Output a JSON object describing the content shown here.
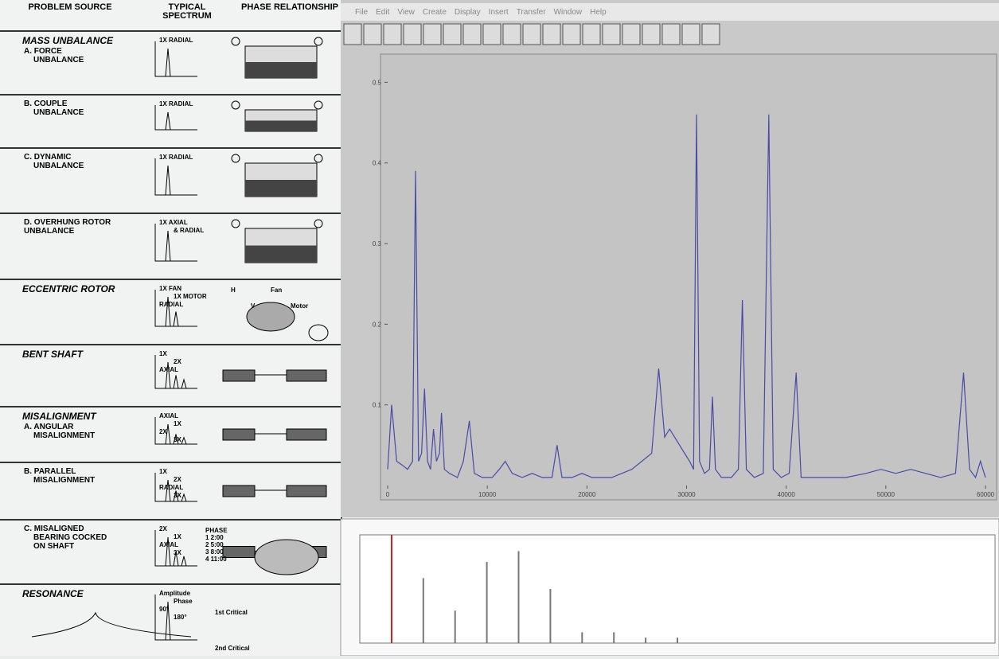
{
  "left_panel": {
    "headers": [
      "PROBLEM SOURCE",
      "TYPICAL SPECTRUM",
      "PHASE RELATIONSHIP"
    ],
    "rows": [
      {
        "group": "MASS UNBALANCE",
        "source": [
          "A. FORCE",
          "UNBALANCE"
        ],
        "spectrum": [
          "1X RADIAL"
        ]
      },
      {
        "source": [
          "B. COUPLE",
          "UNBALANCE"
        ],
        "spectrum": [
          "1X RADIAL"
        ]
      },
      {
        "source": [
          "C. DYNAMIC",
          "UNBALANCE"
        ],
        "spectrum": [
          "1X RADIAL"
        ]
      },
      {
        "source": [
          "D. OVERHUNG ROTOR",
          "UNBALANCE"
        ],
        "spectrum": [
          "1X AXIAL",
          "& RADIAL"
        ]
      },
      {
        "group": "ECCENTRIC ROTOR",
        "spectrum": [
          "1X FAN",
          "1X MOTOR",
          "RADIAL"
        ],
        "phase": [
          "H",
          "V",
          "Fan",
          "Motor"
        ]
      },
      {
        "group": "BENT SHAFT",
        "spectrum": [
          "1X",
          "2X",
          "AXIAL"
        ]
      },
      {
        "group": "MISALIGNMENT",
        "source": [
          "A. ANGULAR",
          "MISALIGNMENT"
        ],
        "spectrum": [
          "AXIAL",
          "1X",
          "2X",
          "3X"
        ]
      },
      {
        "source": [
          "B. PARALLEL",
          "MISALIGNMENT"
        ],
        "spectrum": [
          "1X",
          "2X",
          "RADIAL",
          "3X"
        ]
      },
      {
        "source": [
          "C. MISALIGNED",
          "BEARING COCKED",
          "ON SHAFT"
        ],
        "spectrum": [
          "2X",
          "1X",
          "AXIAL",
          "3X"
        ],
        "phase": [
          "PHASE",
          "1  2:00",
          "2  5:00",
          "3  8:00",
          "4  11:00"
        ]
      },
      {
        "group": "RESONANCE",
        "spectrum": [
          "Amplitude",
          "Phase",
          "90°",
          "180°"
        ],
        "phase": [
          "1st Critical",
          "2nd Critical"
        ]
      }
    ]
  },
  "window": {
    "menu": [
      "File",
      "Edit",
      "View",
      "Create",
      "Display",
      "Insert",
      "Transfer",
      "Window",
      "Help"
    ]
  },
  "chart_data": [
    {
      "type": "line",
      "color": "#4a4aa8",
      "x": [
        0,
        400,
        900,
        1500,
        2000,
        2500,
        2800,
        3100,
        3400,
        3700,
        4000,
        4300,
        4600,
        4900,
        5200,
        5400,
        5700,
        6200,
        7000,
        7600,
        8200,
        8700,
        9500,
        10500,
        11200,
        11800,
        12500,
        13500,
        14500,
        15500,
        16500,
        17000,
        17500,
        18500,
        19500,
        20500,
        21500,
        22500,
        23500,
        24500,
        25500,
        26500,
        27200,
        27800,
        28300,
        28800,
        29300,
        29800,
        30300,
        30700,
        31000,
        31300,
        31800,
        32300,
        32600,
        32900,
        33500,
        34500,
        35200,
        35600,
        36000,
        36800,
        37700,
        38250,
        38700,
        39500,
        40300,
        41000,
        41500,
        42500,
        44000,
        46000,
        48000,
        49500,
        51000,
        52500,
        54000,
        55500,
        57000,
        57800,
        58400,
        59000,
        59500,
        60000
      ],
      "values": [
        0.02,
        0.1,
        0.03,
        0.025,
        0.02,
        0.03,
        0.39,
        0.03,
        0.04,
        0.12,
        0.03,
        0.02,
        0.07,
        0.03,
        0.04,
        0.09,
        0.02,
        0.015,
        0.01,
        0.03,
        0.08,
        0.015,
        0.01,
        0.01,
        0.02,
        0.03,
        0.015,
        0.01,
        0.015,
        0.01,
        0.01,
        0.05,
        0.01,
        0.01,
        0.015,
        0.01,
        0.01,
        0.01,
        0.015,
        0.02,
        0.03,
        0.04,
        0.145,
        0.06,
        0.07,
        0.06,
        0.05,
        0.04,
        0.03,
        0.02,
        0.46,
        0.03,
        0.015,
        0.02,
        0.11,
        0.02,
        0.01,
        0.01,
        0.02,
        0.23,
        0.02,
        0.01,
        0.015,
        0.46,
        0.02,
        0.01,
        0.015,
        0.14,
        0.01,
        0.01,
        0.01,
        0.01,
        0.015,
        0.02,
        0.015,
        0.02,
        0.015,
        0.01,
        0.015,
        0.14,
        0.02,
        0.01,
        0.03,
        0.01
      ],
      "xlim": [
        0,
        60000
      ],
      "xticks": [
        0,
        10000,
        20000,
        30000,
        40000,
        50000,
        60000
      ],
      "ylim": [
        0,
        0.53
      ],
      "yticks": [
        0.1,
        0.2,
        0.3,
        0.4,
        0.5
      ]
    },
    {
      "type": "stem",
      "color": "#777777",
      "x": [
        1,
        2,
        3,
        4,
        5,
        6,
        7,
        8,
        9
      ],
      "values": [
        0.6,
        0.3,
        0.75,
        0.85,
        0.5,
        0.1,
        0.1,
        0.05,
        0.05
      ],
      "xlim": [
        -1,
        19
      ],
      "ylim": [
        0,
        1
      ]
    }
  ]
}
